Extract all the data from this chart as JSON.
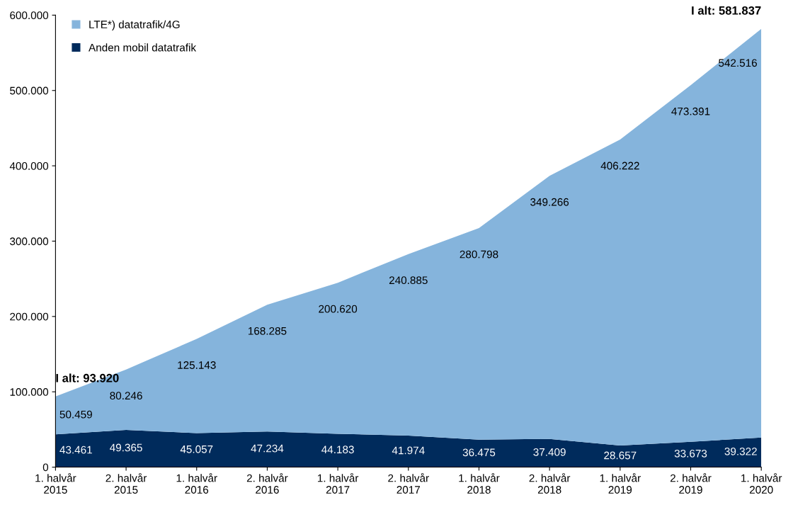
{
  "chart_data": {
    "type": "area",
    "stacked": true,
    "categories": [
      "1. halvår\n2015",
      "2. halvår\n2015",
      "1. halvår\n2016",
      "2. halvår\n2016",
      "1. halvår\n2017",
      "2. halvår\n2017",
      "1. halvår\n2018",
      "2. halvår\n2018",
      "1. halvår\n2019",
      "2. halvår\n2019",
      "1. halvår\n2020"
    ],
    "series": [
      {
        "name": "Anden mobil datatrafik",
        "color": "#002b5c",
        "values": [
          43461,
          49365,
          45057,
          47234,
          44183,
          41974,
          36475,
          37409,
          28657,
          33673,
          39322
        ],
        "value_labels": [
          "43.461",
          "49.365",
          "45.057",
          "47.234",
          "44.183",
          "41.974",
          "36.475",
          "37.409",
          "28.657",
          "33.673",
          "39.322"
        ]
      },
      {
        "name": "LTE*) datatrafik/4G",
        "color": "#85b4dc",
        "values": [
          50459,
          80246,
          125143,
          168285,
          200620,
          240885,
          280798,
          349266,
          406222,
          473391,
          542516
        ],
        "value_labels": [
          "50.459",
          "80.246",
          "125.143",
          "168.285",
          "200.620",
          "240.885",
          "280.798",
          "349.266",
          "406.222",
          "473.391",
          "542.516"
        ]
      }
    ],
    "ylim": [
      0,
      600000
    ],
    "yticks": [
      {
        "value": 0,
        "label": "0"
      },
      {
        "value": 100000,
        "label": "100.000"
      },
      {
        "value": 200000,
        "label": "200.000"
      },
      {
        "value": 300000,
        "label": "300.000"
      },
      {
        "value": 400000,
        "label": "400.000"
      },
      {
        "value": 500000,
        "label": "500.000"
      },
      {
        "value": 600000,
        "label": "600.000"
      }
    ],
    "annotations": [
      {
        "text": "I alt: 93.920",
        "x": "1. halvår\n2015",
        "y": 93920
      },
      {
        "text": "I alt: 581.837",
        "x": "1. halvår\n2020",
        "y": 581837
      }
    ],
    "legend": "top left",
    "grid": false
  }
}
